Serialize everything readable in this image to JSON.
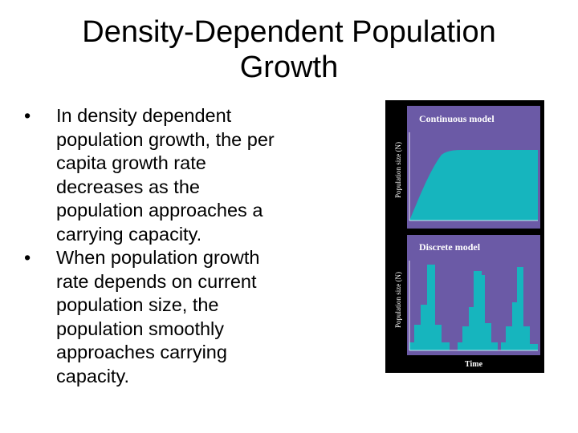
{
  "slide": {
    "title_lines": [
      "Density-Dependent Population",
      "Growth"
    ],
    "bullets": [
      {
        "lines": [
          "In density dependent",
          "population growth, the per",
          "capita growth rate",
          "decreases as the",
          "population approaches a",
          "carrying capacity."
        ]
      },
      {
        "lines": [
          "When population growth",
          "rate depends on current",
          "population size, the",
          "population smoothly",
          "approaches carrying",
          "capacity."
        ]
      }
    ]
  },
  "figure": {
    "colors": {
      "background": "#000000",
      "panel": "#6b5aa6",
      "fill": "#16b5be"
    },
    "continuous_panel": {
      "title": "Continuous model",
      "ylabel": "Population size (N)"
    },
    "discrete_panel": {
      "title": "Discrete model",
      "ylabel": "Population size (N)",
      "xlabel": "Time"
    }
  }
}
